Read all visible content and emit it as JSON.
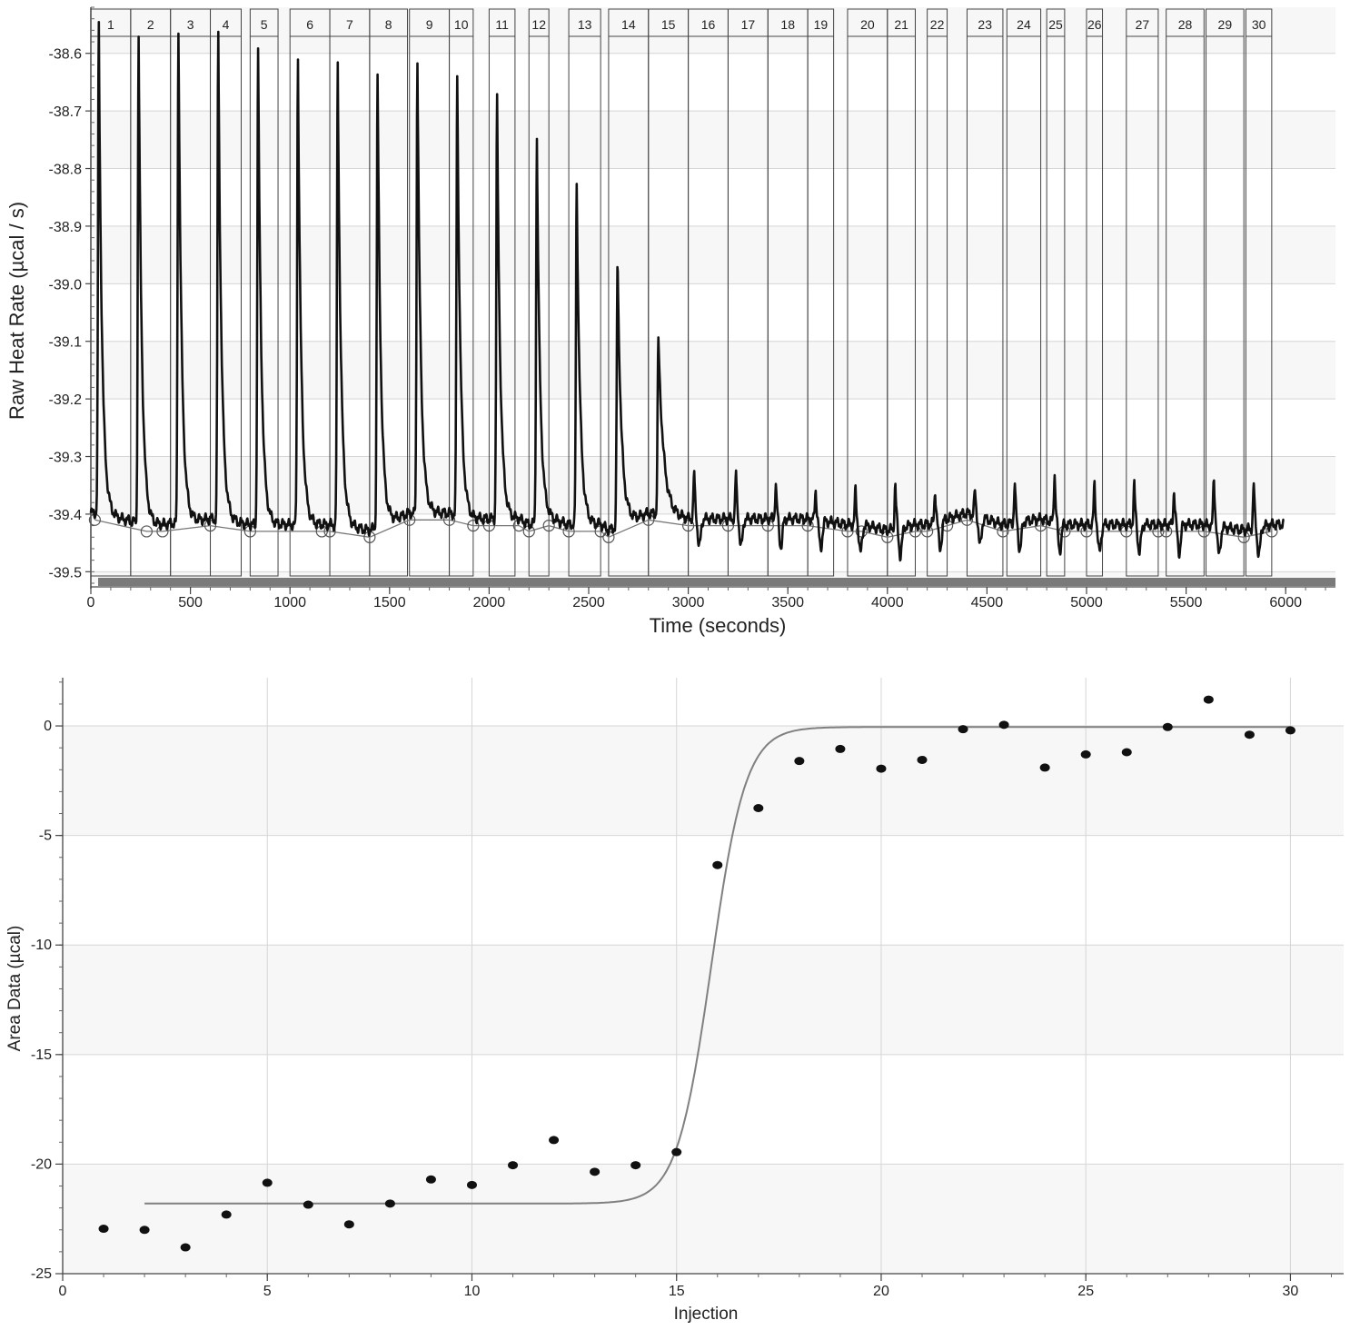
{
  "chart_data": [
    {
      "type": "line",
      "xlabel": "Time (seconds)",
      "ylabel": "Raw Heat Rate (µcal / s)",
      "xlim": [
        0,
        6250
      ],
      "ylim": [
        -39.52,
        -38.52
      ],
      "x_ticks": [
        0,
        500,
        1000,
        1500,
        2000,
        2500,
        3000,
        3500,
        4000,
        4500,
        5000,
        5500,
        6000
      ],
      "y_ticks": [
        -38.6,
        -38.7,
        -38.8,
        -38.9,
        -39.0,
        -39.1,
        -39.2,
        -39.3,
        -39.4,
        -39.5
      ],
      "x_tick_labels": [
        "0",
        "500",
        "1000",
        "1500",
        "2000",
        "2500",
        "3000",
        "3500",
        "4000",
        "4500",
        "5000",
        "5500",
        "6000"
      ],
      "y_tick_labels": [
        "-38.6",
        "-38.7",
        "-38.8",
        "-38.9",
        "-39.0",
        "-39.1",
        "-39.2",
        "-39.3",
        "-39.4",
        "-39.5"
      ],
      "grid": true,
      "line_color": "#111111",
      "baseline_color": "#777777",
      "injections": [
        {
          "label": "1",
          "start": 0,
          "end": 200
        },
        {
          "label": "2",
          "start": 200,
          "end": 400
        },
        {
          "label": "3",
          "start": 400,
          "end": 600
        },
        {
          "label": "4",
          "start": 600,
          "end": 755
        },
        {
          "label": "5",
          "start": 800,
          "end": 940
        },
        {
          "label": "6",
          "start": 1000,
          "end": 1200
        },
        {
          "label": "7",
          "start": 1200,
          "end": 1400
        },
        {
          "label": "8",
          "start": 1400,
          "end": 1590
        },
        {
          "label": "9",
          "start": 1600,
          "end": 1800
        },
        {
          "label": "10",
          "start": 1800,
          "end": 1920
        },
        {
          "label": "11",
          "start": 2000,
          "end": 2130
        },
        {
          "label": "12",
          "start": 2200,
          "end": 2300
        },
        {
          "label": "13",
          "start": 2400,
          "end": 2560
        },
        {
          "label": "14",
          "start": 2600,
          "end": 2800
        },
        {
          "label": "15",
          "start": 2800,
          "end": 3000
        },
        {
          "label": "16",
          "start": 3000,
          "end": 3200
        },
        {
          "label": "17",
          "start": 3200,
          "end": 3400
        },
        {
          "label": "18",
          "start": 3400,
          "end": 3600
        },
        {
          "label": "19",
          "start": 3600,
          "end": 3730
        },
        {
          "label": "20",
          "start": 3800,
          "end": 4000
        },
        {
          "label": "21",
          "start": 4000,
          "end": 4140
        },
        {
          "label": "22",
          "start": 4200,
          "end": 4300
        },
        {
          "label": "23",
          "start": 4400,
          "end": 4580
        },
        {
          "label": "24",
          "start": 4600,
          "end": 4770
        },
        {
          "label": "25",
          "start": 4800,
          "end": 4890
        },
        {
          "label": "26",
          "start": 5000,
          "end": 5080
        },
        {
          "label": "27",
          "start": 5200,
          "end": 5360
        },
        {
          "label": "28",
          "start": 5400,
          "end": 5590
        },
        {
          "label": "29",
          "start": 5600,
          "end": 5790
        },
        {
          "label": "30",
          "start": 5800,
          "end": 5930
        }
      ],
      "peaks": [
        {
          "t": 40,
          "y": -38.56,
          "w": 16
        },
        {
          "t": 240,
          "y": -38.58,
          "w": 16
        },
        {
          "t": 440,
          "y": -38.57,
          "w": 16
        },
        {
          "t": 640,
          "y": -38.58,
          "w": 16
        },
        {
          "t": 840,
          "y": -38.61,
          "w": 16
        },
        {
          "t": 1040,
          "y": -38.62,
          "w": 16
        },
        {
          "t": 1240,
          "y": -38.63,
          "w": 16
        },
        {
          "t": 1440,
          "y": -38.65,
          "w": 16
        },
        {
          "t": 1640,
          "y": -38.62,
          "w": 16
        },
        {
          "t": 1840,
          "y": -38.65,
          "w": 16
        },
        {
          "t": 2040,
          "y": -38.69,
          "w": 16
        },
        {
          "t": 2240,
          "y": -38.76,
          "w": 16
        },
        {
          "t": 2440,
          "y": -38.84,
          "w": 17
        },
        {
          "t": 2645,
          "y": -38.97,
          "w": 19
        },
        {
          "t": 2850,
          "y": -39.11,
          "w": 26
        },
        {
          "t": 3030,
          "y": -39.34,
          "w": 10
        },
        {
          "t": 3240,
          "y": -39.34,
          "w": 10
        },
        {
          "t": 3440,
          "y": -39.36,
          "w": 10
        },
        {
          "t": 3640,
          "y": -39.37,
          "w": 10
        },
        {
          "t": 3840,
          "y": -39.37,
          "w": 10
        },
        {
          "t": 4040,
          "y": -39.36,
          "w": 10
        },
        {
          "t": 4240,
          "y": -39.37,
          "w": 10
        },
        {
          "t": 4440,
          "y": -39.37,
          "w": 10
        },
        {
          "t": 4640,
          "y": -39.36,
          "w": 10
        },
        {
          "t": 4840,
          "y": -39.34,
          "w": 10
        },
        {
          "t": 5040,
          "y": -39.36,
          "w": 10
        },
        {
          "t": 5240,
          "y": -39.36,
          "w": 10
        },
        {
          "t": 5440,
          "y": -39.37,
          "w": 10
        },
        {
          "t": 5640,
          "y": -39.35,
          "w": 10
        },
        {
          "t": 5840,
          "y": -39.36,
          "w": 10
        }
      ],
      "baseline_points": [
        {
          "t": 20,
          "y": -39.41
        },
        {
          "t": 280,
          "y": -39.43
        },
        {
          "t": 360,
          "y": -39.43
        },
        {
          "t": 600,
          "y": -39.42
        },
        {
          "t": 800,
          "y": -39.43
        },
        {
          "t": 1160,
          "y": -39.43
        },
        {
          "t": 1200,
          "y": -39.43
        },
        {
          "t": 1400,
          "y": -39.44
        },
        {
          "t": 1600,
          "y": -39.41
        },
        {
          "t": 1800,
          "y": -39.41
        },
        {
          "t": 1920,
          "y": -39.42
        },
        {
          "t": 2000,
          "y": -39.42
        },
        {
          "t": 2150,
          "y": -39.42
        },
        {
          "t": 2200,
          "y": -39.43
        },
        {
          "t": 2300,
          "y": -39.42
        },
        {
          "t": 2400,
          "y": -39.43
        },
        {
          "t": 2560,
          "y": -39.43
        },
        {
          "t": 2600,
          "y": -39.44
        },
        {
          "t": 2800,
          "y": -39.41
        },
        {
          "t": 3000,
          "y": -39.42
        },
        {
          "t": 3200,
          "y": -39.42
        },
        {
          "t": 3400,
          "y": -39.42
        },
        {
          "t": 3600,
          "y": -39.42
        },
        {
          "t": 3800,
          "y": -39.43
        },
        {
          "t": 3870,
          "y": -39.43
        },
        {
          "t": 4000,
          "y": -39.44
        },
        {
          "t": 4140,
          "y": -39.43
        },
        {
          "t": 4200,
          "y": -39.43
        },
        {
          "t": 4300,
          "y": -39.42
        },
        {
          "t": 4400,
          "y": -39.41
        },
        {
          "t": 4580,
          "y": -39.43
        },
        {
          "t": 4770,
          "y": -39.42
        },
        {
          "t": 4890,
          "y": -39.43
        },
        {
          "t": 5000,
          "y": -39.43
        },
        {
          "t": 5200,
          "y": -39.43
        },
        {
          "t": 5360,
          "y": -39.43
        },
        {
          "t": 5400,
          "y": -39.43
        },
        {
          "t": 5590,
          "y": -39.43
        },
        {
          "t": 5790,
          "y": -39.44
        },
        {
          "t": 5930,
          "y": -39.43
        }
      ]
    },
    {
      "type": "scatter",
      "xlabel": "Injection",
      "ylabel": "Area Data (µcal)",
      "xlim": [
        0,
        31.3
      ],
      "ylim": [
        -25,
        2.2
      ],
      "x_ticks": [
        0,
        5,
        10,
        15,
        20,
        25,
        30
      ],
      "y_ticks": [
        0,
        -5,
        -10,
        -15,
        -20,
        -25
      ],
      "x_tick_labels": [
        "0",
        "5",
        "10",
        "15",
        "20",
        "25",
        "30"
      ],
      "y_tick_labels": [
        "0",
        "-5",
        "-10",
        "-15",
        "-20",
        "-25"
      ],
      "grid": true,
      "point_color": "#111111",
      "fit_color": "#808080",
      "points": [
        {
          "x": 1,
          "y": -22.95
        },
        {
          "x": 2,
          "y": -23.0
        },
        {
          "x": 3,
          "y": -23.8
        },
        {
          "x": 4,
          "y": -22.3
        },
        {
          "x": 5,
          "y": -20.85
        },
        {
          "x": 6,
          "y": -21.85
        },
        {
          "x": 7,
          "y": -22.75
        },
        {
          "x": 8,
          "y": -21.8
        },
        {
          "x": 9,
          "y": -20.7
        },
        {
          "x": 10,
          "y": -20.95
        },
        {
          "x": 11,
          "y": -20.05
        },
        {
          "x": 12,
          "y": -18.9
        },
        {
          "x": 13,
          "y": -20.35
        },
        {
          "x": 14,
          "y": -20.05
        },
        {
          "x": 15,
          "y": -19.45
        },
        {
          "x": 16,
          "y": -6.35
        },
        {
          "x": 17,
          "y": -3.75
        },
        {
          "x": 18,
          "y": -1.6
        },
        {
          "x": 19,
          "y": -1.05
        },
        {
          "x": 20,
          "y": -1.95
        },
        {
          "x": 21,
          "y": -1.55
        },
        {
          "x": 22,
          "y": -0.15
        },
        {
          "x": 23,
          "y": 0.05
        },
        {
          "x": 24,
          "y": -1.9
        },
        {
          "x": 25,
          "y": -1.3
        },
        {
          "x": 26,
          "y": -1.2
        },
        {
          "x": 27,
          "y": -0.05
        },
        {
          "x": 28,
          "y": 1.2
        },
        {
          "x": 29,
          "y": -0.4
        },
        {
          "x": 30,
          "y": -0.2
        }
      ],
      "fit": {
        "x_range": [
          2,
          30
        ],
        "model": "logistic",
        "lower": -21.8,
        "upper": -0.05,
        "midpoint": 15.85,
        "scale": 0.42
      }
    }
  ]
}
